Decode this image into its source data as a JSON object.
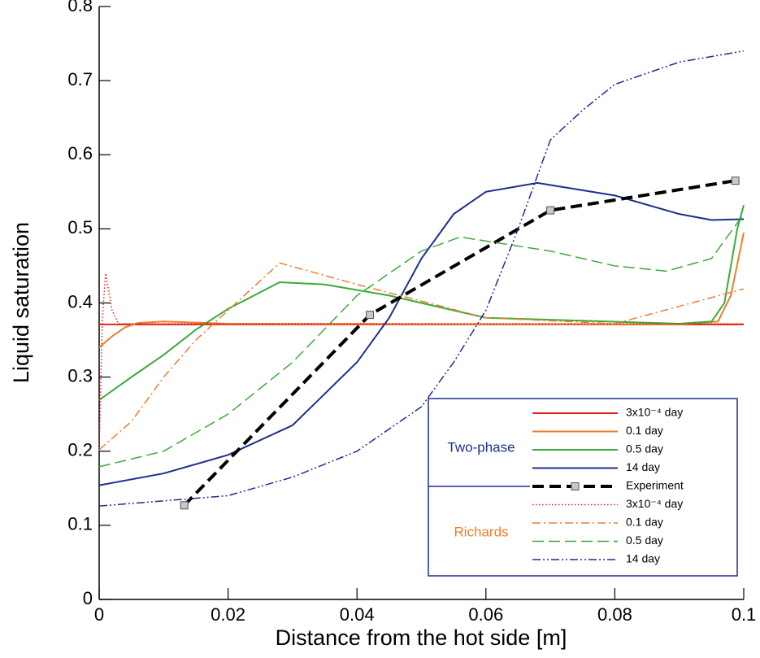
{
  "chart_data": {
    "type": "line",
    "xlabel": "Distance from the hot side [m]",
    "ylabel": "Liquid saturation",
    "xlim": [
      0,
      0.1
    ],
    "ylim": [
      0,
      0.8
    ],
    "xticks": [
      0,
      0.02,
      0.04,
      0.06,
      0.08,
      0.1
    ],
    "yticks": [
      0,
      0.1,
      0.2,
      0.3,
      0.4,
      0.5,
      0.6,
      0.7,
      0.8
    ],
    "legend_groups": [
      {
        "label": "Two-phase",
        "color": "#1f2d8f"
      },
      {
        "label": "Richards",
        "color": "#f07c2c"
      }
    ],
    "series": [
      {
        "name": "3x10⁻⁴ day",
        "color": "#e2231a",
        "dash": "none",
        "width": 2,
        "x": [
          0,
          0.1
        ],
        "values": [
          0.371,
          0.371
        ]
      },
      {
        "name": "0.1 day",
        "color": "#f07c2c",
        "dash": "none",
        "width": 2,
        "x": [
          0,
          0.002,
          0.004,
          0.006,
          0.01,
          0.02,
          0.09,
          0.096,
          0.098,
          0.1
        ],
        "values": [
          0.34,
          0.355,
          0.367,
          0.373,
          0.375,
          0.372,
          0.371,
          0.375,
          0.41,
          0.495
        ]
      },
      {
        "name": "0.5 day",
        "color": "#3aab3a",
        "dash": "none",
        "width": 2,
        "x": [
          0,
          0.005,
          0.01,
          0.015,
          0.02,
          0.028,
          0.035,
          0.045,
          0.06,
          0.09,
          0.095,
          0.097,
          0.099,
          0.1
        ],
        "values": [
          0.269,
          0.3,
          0.33,
          0.364,
          0.392,
          0.428,
          0.425,
          0.41,
          0.38,
          0.372,
          0.375,
          0.4,
          0.5,
          0.532
        ]
      },
      {
        "name": "14 day",
        "color": "#1f2d8f",
        "dash": "none",
        "width": 2,
        "x": [
          0,
          0.01,
          0.02,
          0.03,
          0.04,
          0.045,
          0.05,
          0.055,
          0.06,
          0.068,
          0.08,
          0.09,
          0.095,
          0.1
        ],
        "values": [
          0.154,
          0.17,
          0.195,
          0.235,
          0.32,
          0.38,
          0.46,
          0.52,
          0.55,
          0.562,
          0.545,
          0.52,
          0.512,
          0.513
        ]
      },
      {
        "name": "Experiment",
        "color": "#000000",
        "dash": "14 7",
        "width": 4,
        "marker": "#c8c8c8",
        "x": [
          0.0132,
          0.042,
          0.07,
          0.0987
        ],
        "values": [
          0.127,
          0.384,
          0.525,
          0.565
        ]
      },
      {
        "name": "3x10⁻⁴ day",
        "color": "#e2231a",
        "dash": "1.5 2.5",
        "width": 1.5,
        "x": [
          0,
          0.0005,
          0.001,
          0.002,
          0.003,
          0.1
        ],
        "values": [
          0.2,
          0.38,
          0.44,
          0.39,
          0.372,
          0.372
        ]
      },
      {
        "name": "0.1 day",
        "color": "#f07c2c",
        "dash": "10 4 2 4",
        "width": 1.5,
        "x": [
          0,
          0.005,
          0.01,
          0.015,
          0.02,
          0.025,
          0.028,
          0.04,
          0.06,
          0.08,
          0.1
        ],
        "values": [
          0.202,
          0.24,
          0.3,
          0.35,
          0.39,
          0.43,
          0.454,
          0.425,
          0.38,
          0.372,
          0.419
        ]
      },
      {
        "name": "0.5 day",
        "color": "#3aab3a",
        "dash": "14 6",
        "width": 1.5,
        "x": [
          0,
          0.01,
          0.02,
          0.03,
          0.04,
          0.05,
          0.056,
          0.07,
          0.08,
          0.088,
          0.095,
          0.1
        ],
        "values": [
          0.179,
          0.2,
          0.25,
          0.32,
          0.41,
          0.47,
          0.489,
          0.47,
          0.45,
          0.443,
          0.46,
          0.52
        ]
      },
      {
        "name": "14 day",
        "color": "#1f2d8f",
        "dash": "10 3 2 3 2 3",
        "width": 1.5,
        "x": [
          0,
          0.02,
          0.03,
          0.04,
          0.05,
          0.055,
          0.06,
          0.065,
          0.07,
          0.075,
          0.08,
          0.09,
          0.1
        ],
        "values": [
          0.126,
          0.14,
          0.165,
          0.2,
          0.26,
          0.32,
          0.39,
          0.5,
          0.62,
          0.66,
          0.695,
          0.725,
          0.74
        ]
      }
    ]
  }
}
